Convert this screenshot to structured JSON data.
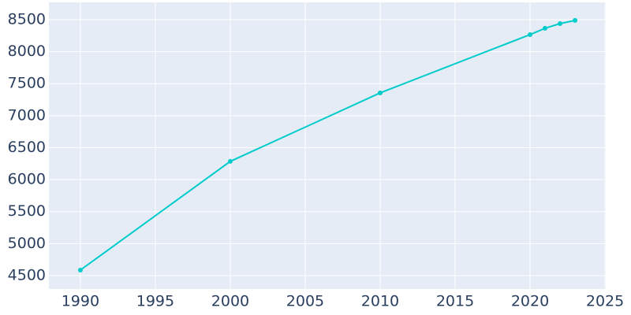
{
  "chart_data": {
    "type": "line",
    "x": [
      1990,
      2000,
      2010,
      2020,
      2021,
      2022,
      2023
    ],
    "series": [
      {
        "color": "#00cccc",
        "values": [
          4586,
          6285,
          7355,
          8266,
          8365,
          8438,
          8488
        ]
      }
    ],
    "xlim": [
      1987.9,
      2025.05
    ],
    "xticks": [
      1990,
      1995,
      2000,
      2005,
      2010,
      2015,
      2020,
      2025
    ],
    "ylim": [
      4290,
      8770
    ],
    "yticks": [
      4500,
      5000,
      5500,
      6000,
      6500,
      7000,
      7500,
      8000,
      8500
    ],
    "grid": true
  }
}
